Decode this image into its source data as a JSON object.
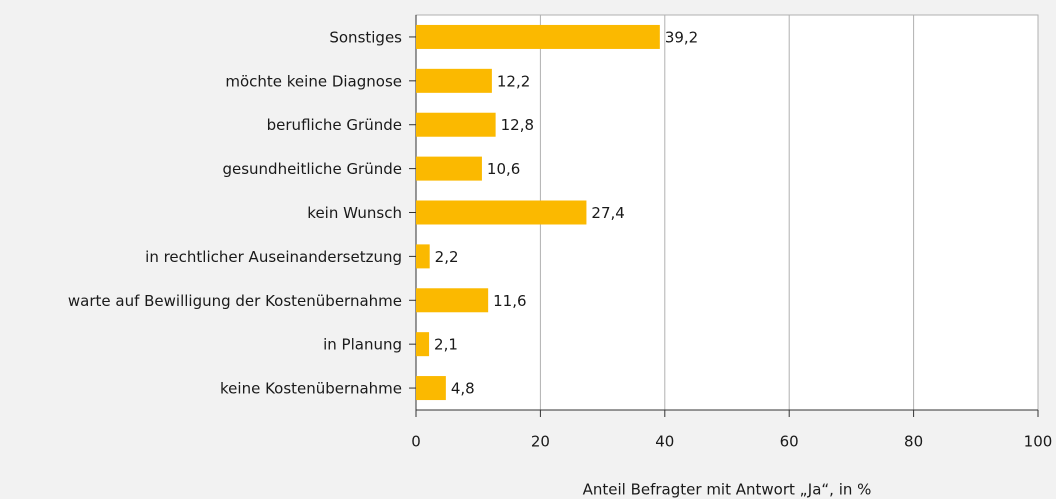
{
  "chart_data": {
    "type": "bar",
    "orientation": "horizontal",
    "categories": [
      "Sonstiges",
      "möchte keine Diagnose",
      "berufliche Gründe",
      "gesundheitliche Gründe",
      "kein Wunsch",
      "in rechtlicher Auseinandersetzung",
      "warte auf Bewilligung der Kostenübernahme",
      "in Planung",
      "keine Kostenübernahme"
    ],
    "values": [
      39.2,
      12.2,
      12.8,
      10.6,
      27.4,
      2.2,
      11.6,
      2.1,
      4.8
    ],
    "value_labels": [
      "39,2",
      "12,2",
      "12,8",
      "10,6",
      "27,4",
      "2,2",
      "11,6",
      "2,1",
      "4,8"
    ],
    "color": "#fbb900",
    "xlabel": "Anteil Befragter mit Antwort „Ja“, in %",
    "xlim": [
      0,
      100
    ],
    "xticks": [
      0,
      20,
      40,
      60,
      80,
      100
    ],
    "grid": true
  }
}
